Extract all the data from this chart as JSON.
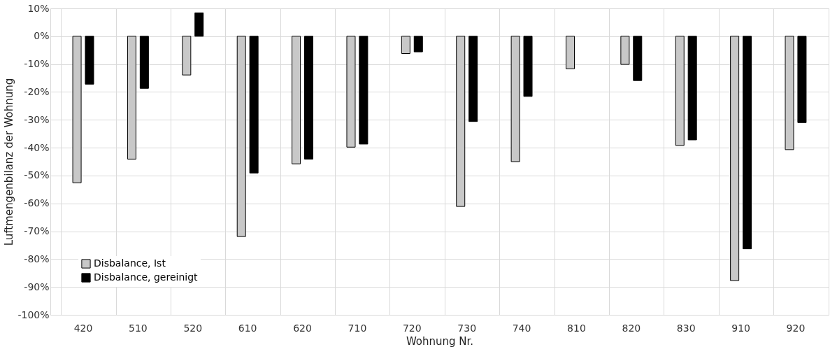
{
  "chart_data": {
    "type": "bar",
    "xlabel": "Wohnung Nr.",
    "ylabel": "Luftmengenbilanz der Wohnung",
    "categories": [
      "420",
      "510",
      "520",
      "610",
      "620",
      "710",
      "720",
      "730",
      "740",
      "810",
      "820",
      "830",
      "910",
      "920"
    ],
    "series": [
      {
        "name": "Disbalance, Ist",
        "color": "#c8c8c8",
        "values": [
          -52.6,
          -44.1,
          -13.9,
          -71.9,
          -45.8,
          -39.8,
          -6.2,
          -61.1,
          -45.0,
          -11.7,
          -10.1,
          -39.2,
          -87.7,
          -40.7
        ]
      },
      {
        "name": "Disbalance, gereinigt",
        "color": "#000000",
        "values": [
          -17.2,
          -18.7,
          8.4,
          -49.1,
          -44.1,
          -38.7,
          -5.6,
          -30.6,
          -21.6,
          null,
          -15.9,
          -37.2,
          -76.3,
          -31.0
        ]
      }
    ],
    "ylim": [
      -100,
      10
    ],
    "yticks": [
      {
        "value": 10,
        "label": "10%"
      },
      {
        "value": 0,
        "label": "0%"
      },
      {
        "value": -10,
        "label": "-10%"
      },
      {
        "value": -20,
        "label": "-20%"
      },
      {
        "value": -30,
        "label": "-30%"
      },
      {
        "value": -40,
        "label": "-40%"
      },
      {
        "value": -50,
        "label": "-50%"
      },
      {
        "value": -60,
        "label": "-60%"
      },
      {
        "value": -70,
        "label": "-70%"
      },
      {
        "value": -80,
        "label": "-80%"
      },
      {
        "value": -90,
        "label": "-90%"
      },
      {
        "value": -100,
        "label": "-100%"
      }
    ],
    "grid": true,
    "legend": "bottom left"
  }
}
